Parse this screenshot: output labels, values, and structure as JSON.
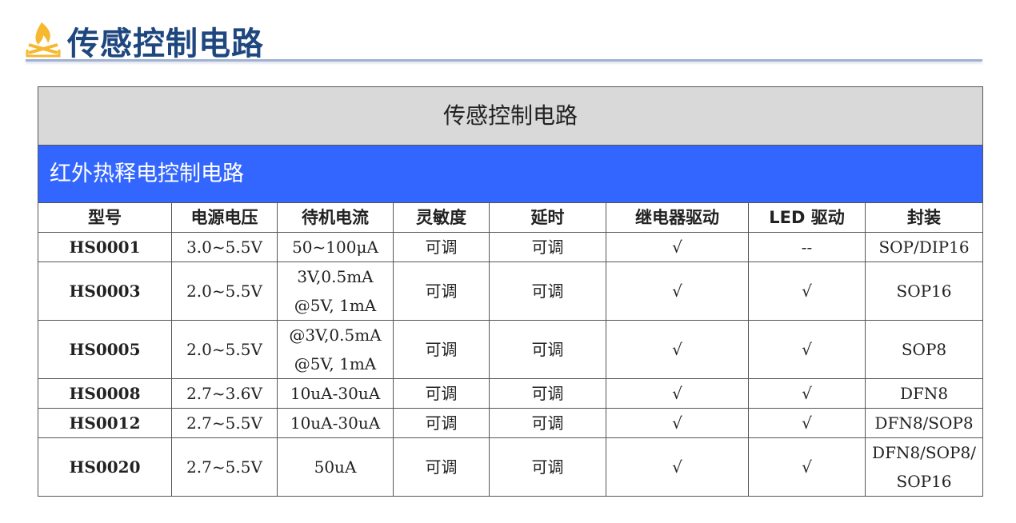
{
  "page": {
    "title": "传感控制电路",
    "accent": "#1f477f",
    "logo": "flame-logo"
  },
  "table": {
    "caption": "传感控制电路",
    "section": "红外热释电控制电路",
    "section_color": "#3366ff",
    "headers": [
      "型号",
      "电源电压",
      "待机电流",
      "灵敏度",
      "延时",
      "继电器驱动",
      "LED 驱动",
      "封装"
    ],
    "rows": [
      {
        "cells": [
          "HS0001",
          "3.0~5.5V",
          "50~100μA",
          "可调",
          "可调",
          "√",
          "--",
          "SOP/DIP16"
        ]
      },
      {
        "cells": [
          "HS0003",
          "2.0~5.5V",
          "3V,0.5mA\n@5V, 1mA",
          "可调",
          "可调",
          "√",
          "√",
          "SOP16"
        ]
      },
      {
        "cells": [
          "HS0005",
          "2.0~5.5V",
          "@3V,0.5mA\n@5V, 1mA",
          "可调",
          "可调",
          "√",
          "√",
          "SOP8"
        ]
      },
      {
        "cells": [
          "HS0008",
          "2.7~3.6V",
          "10uA-30uA",
          "可调",
          "可调",
          "√",
          "√",
          "DFN8"
        ]
      },
      {
        "cells": [
          "HS0012",
          "2.7~5.5V",
          "10uA-30uA",
          "可调",
          "可调",
          "√",
          "√",
          "DFN8/SOP8"
        ]
      },
      {
        "cells": [
          "HS0020",
          "2.7~5.5V",
          "50uA",
          "可调",
          "可调",
          "√",
          "√",
          "DFN8/SOP8/\nSOP16"
        ]
      }
    ]
  }
}
